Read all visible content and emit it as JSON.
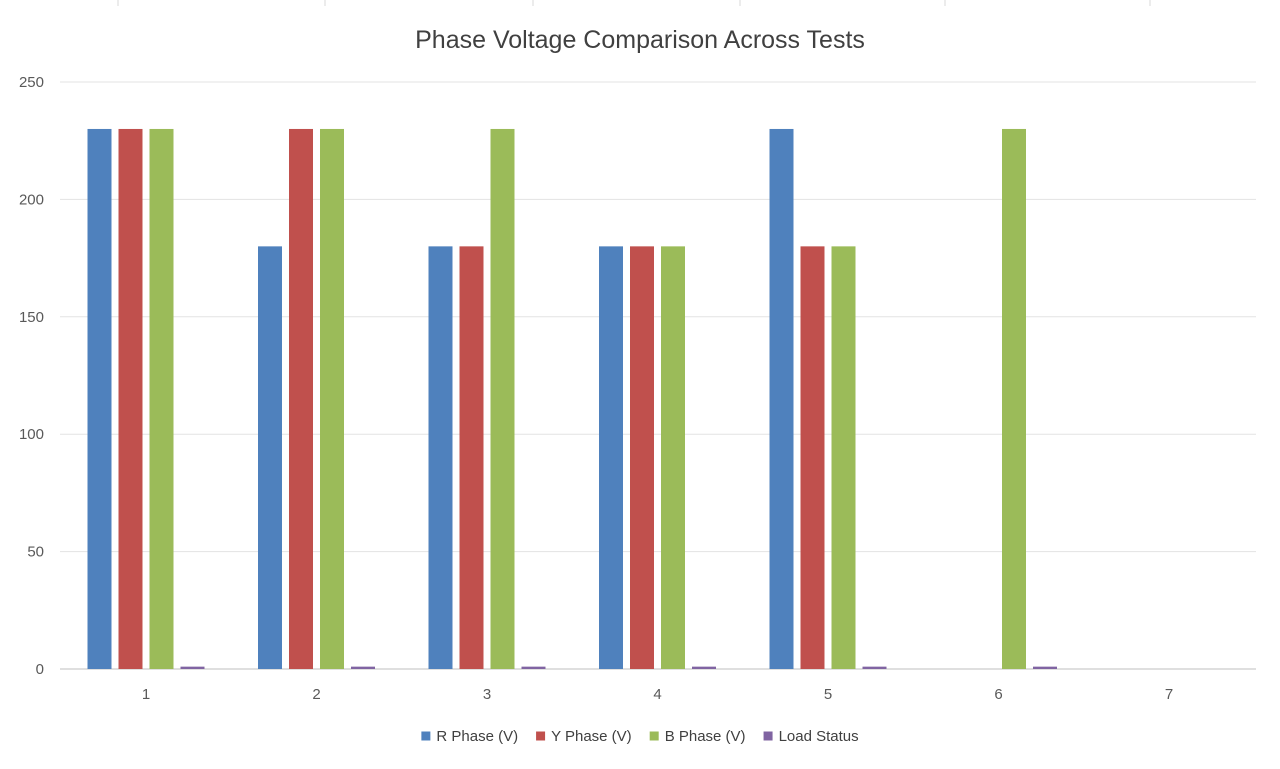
{
  "chart_data": {
    "type": "bar",
    "title": "Phase Voltage Comparison Across Tests",
    "xlabel": "",
    "ylabel": "",
    "categories": [
      "1",
      "2",
      "3",
      "4",
      "5",
      "6",
      "7"
    ],
    "ylim": [
      0,
      250
    ],
    "yticks": [
      "0",
      "50",
      "100",
      "150",
      "200",
      "250"
    ],
    "grid": true,
    "legend_position": "bottom",
    "series": [
      {
        "name": "R Phase (V)",
        "color": "#4F81BD",
        "values": [
          230,
          180,
          180,
          180,
          230,
          0,
          null
        ]
      },
      {
        "name": "Y Phase (V)",
        "color": "#C0504D",
        "values": [
          230,
          230,
          180,
          180,
          180,
          0,
          null
        ]
      },
      {
        "name": "B Phase (V)",
        "color": "#9BBB59",
        "values": [
          230,
          230,
          230,
          180,
          180,
          230,
          null
        ]
      },
      {
        "name": "Load Status",
        "color": "#8064A2",
        "values": [
          1,
          1,
          1,
          1,
          1,
          1,
          null
        ]
      }
    ]
  }
}
